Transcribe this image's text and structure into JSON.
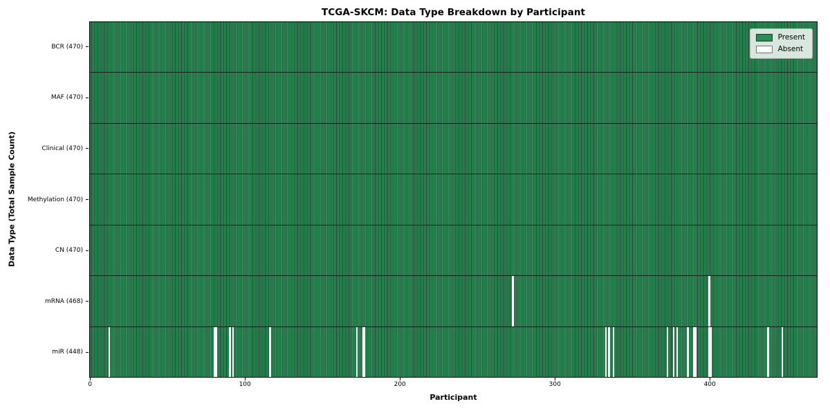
{
  "chart_data": {
    "type": "heatmap",
    "title": "TCGA-SKCM: Data Type Breakdown by Participant",
    "xlabel": "Participant",
    "ylabel": "Data Type (Total Sample Count)",
    "n_participants": 470,
    "x_range": [
      0,
      470
    ],
    "x_ticks": [
      0,
      100,
      200,
      300,
      400
    ],
    "grid": false,
    "legend_position": "upper right",
    "colors": {
      "present": "#2e8b57",
      "absent": "#ffffff",
      "bar_edge": "#164a2e",
      "row_separator": "#0c2417",
      "legend_background": "rgba(255,255,255,0.82)"
    },
    "legend": [
      {
        "label": "Present",
        "color_key": "present"
      },
      {
        "label": "Absent",
        "color_key": "absent"
      }
    ],
    "rows": [
      {
        "data_type": "BCR",
        "label": "BCR (470)",
        "total_samples": 470,
        "present_count": 470,
        "absent_count": 0,
        "absent_participants": []
      },
      {
        "data_type": "MAF",
        "label": "MAF (470)",
        "total_samples": 470,
        "present_count": 470,
        "absent_count": 0,
        "absent_participants": []
      },
      {
        "data_type": "Clinical",
        "label": "Clinical (470)",
        "total_samples": 470,
        "present_count": 470,
        "absent_count": 0,
        "absent_participants": []
      },
      {
        "data_type": "Methylation",
        "label": "Methylation (470)",
        "total_samples": 470,
        "present_count": 470,
        "absent_count": 0,
        "absent_participants": []
      },
      {
        "data_type": "CN",
        "label": "CN (470)",
        "total_samples": 470,
        "present_count": 470,
        "absent_count": 0,
        "absent_participants": []
      },
      {
        "data_type": "mRNA",
        "label": "mRNA (468)",
        "total_samples": 470,
        "present_count": 468,
        "absent_count": 2,
        "absent_participants": [
          273,
          400
        ]
      },
      {
        "data_type": "miR",
        "label": "miR (448)",
        "total_samples": 470,
        "present_count": 448,
        "absent_count": 22,
        "absent_participants": [
          12,
          80,
          81,
          90,
          92,
          116,
          172,
          176,
          177,
          333,
          335,
          338,
          373,
          377,
          379,
          386,
          390,
          391,
          400,
          401,
          438,
          447
        ]
      }
    ]
  }
}
